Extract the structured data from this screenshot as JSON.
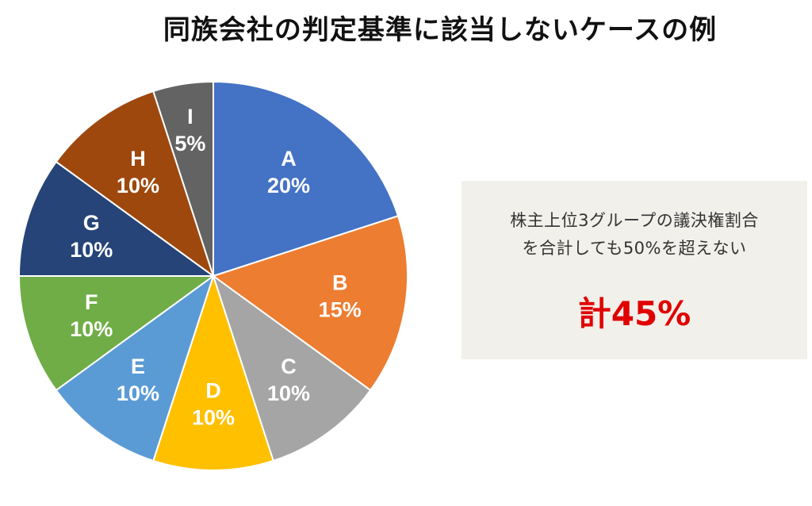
{
  "title": "同族会社の判定基準に該当しないケースの例",
  "chart_data": {
    "type": "pie",
    "title": "同族会社の判定基準に該当しないケースの例",
    "slices": [
      {
        "label": "A",
        "value": 20,
        "display": "20%",
        "color": "#4472c4"
      },
      {
        "label": "B",
        "value": 15,
        "display": "15%",
        "color": "#ed7d31"
      },
      {
        "label": "C",
        "value": 10,
        "display": "10%",
        "color": "#a5a5a5"
      },
      {
        "label": "D",
        "value": 10,
        "display": "10%",
        "color": "#ffc000"
      },
      {
        "label": "E",
        "value": 10,
        "display": "10%",
        "color": "#5b9bd5"
      },
      {
        "label": "F",
        "value": 10,
        "display": "10%",
        "color": "#70ad47"
      },
      {
        "label": "G",
        "value": 10,
        "display": "10%",
        "color": "#264478"
      },
      {
        "label": "H",
        "value": 10,
        "display": "10%",
        "color": "#9e480e"
      },
      {
        "label": "I",
        "value": 5,
        "display": "5%",
        "color": "#636363"
      }
    ],
    "start_angle": "12 o'clock",
    "direction": "clockwise"
  },
  "note": {
    "line1": "株主上位3グループの議決権割合",
    "line2": "を合計しても50%を超えない",
    "total": "計45%",
    "background": "#f2f0eb",
    "total_color": "#e00000"
  }
}
